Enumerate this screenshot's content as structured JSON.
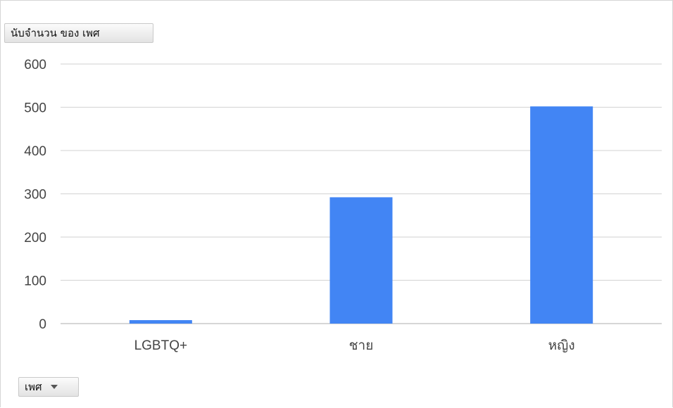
{
  "chart_data": {
    "type": "bar",
    "title": "นับจำนวน ของ เพศ",
    "categories": [
      "LGBTQ+",
      "ชาย",
      "หญิง"
    ],
    "values": [
      8,
      292,
      502
    ],
    "ylim": [
      0,
      600
    ],
    "yticks": [
      0,
      100,
      200,
      300,
      400,
      500,
      600
    ],
    "bar_color": "#4285f4",
    "grid": true
  },
  "filter": {
    "label": "เพศ",
    "icon": "chevron-down-icon"
  }
}
